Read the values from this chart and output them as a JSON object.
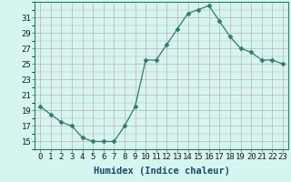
{
  "x": [
    0,
    1,
    2,
    3,
    4,
    5,
    6,
    7,
    8,
    9,
    10,
    11,
    12,
    13,
    14,
    15,
    16,
    17,
    18,
    19,
    20,
    21,
    22,
    23
  ],
  "y": [
    19.5,
    18.5,
    17.5,
    17.0,
    15.5,
    15.0,
    15.0,
    15.0,
    17.0,
    19.5,
    25.5,
    25.5,
    27.5,
    29.5,
    31.5,
    32.0,
    32.5,
    30.5,
    28.5,
    27.0,
    26.5,
    25.5,
    25.5,
    25.0
  ],
  "line_color": "#2e7d6e",
  "marker": "D",
  "marker_size": 2.5,
  "bg_color": "#d5f5f0",
  "grid_color_major": "#c0b0b0",
  "grid_color_minor": "#c0b0b0",
  "xlabel": "Humidex (Indice chaleur)",
  "xlabel_fontsize": 7.5,
  "tick_fontsize": 6.5,
  "yticks": [
    15,
    17,
    19,
    21,
    23,
    25,
    27,
    29,
    31
  ],
  "xticks": [
    0,
    1,
    2,
    3,
    4,
    5,
    6,
    7,
    8,
    9,
    10,
    11,
    12,
    13,
    14,
    15,
    16,
    17,
    18,
    19,
    20,
    21,
    22,
    23
  ],
  "xlim": [
    -0.5,
    23.5
  ],
  "ylim": [
    14.0,
    33.0
  ]
}
